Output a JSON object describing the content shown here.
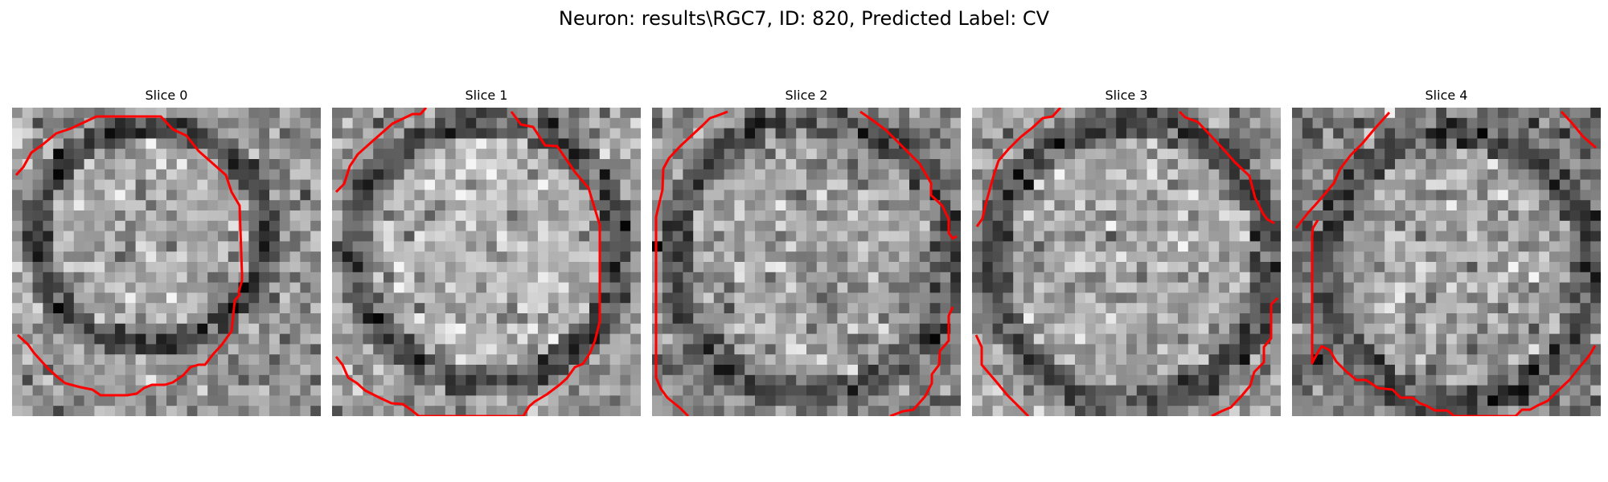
{
  "figure": {
    "title": "Neuron: results\\RGC7, ID: 820, Predicted Label: CV"
  },
  "panels": [
    {
      "title": "Slice 0"
    },
    {
      "title": "Slice 1"
    },
    {
      "title": "Slice 2"
    },
    {
      "title": "Slice 3"
    },
    {
      "title": "Slice 4"
    }
  ],
  "colors": {
    "contour": "#ff0000",
    "background": "#ffffff"
  }
}
